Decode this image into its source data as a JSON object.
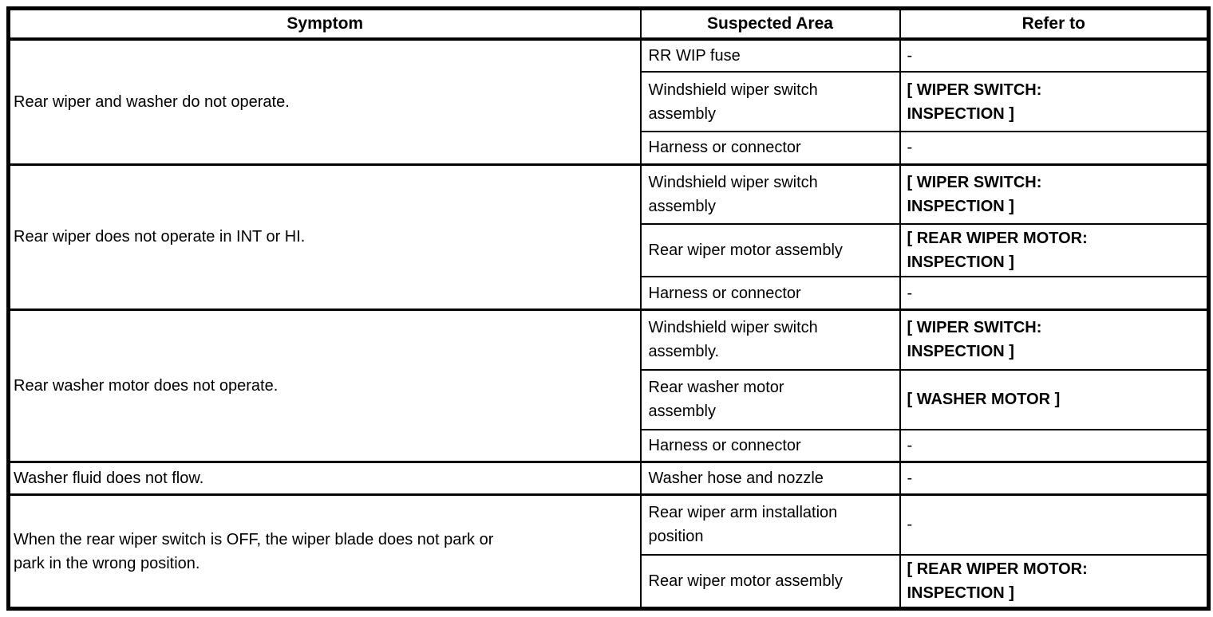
{
  "table": {
    "headers": {
      "symptom": "Symptom",
      "area": "Suspected Area",
      "refer": "Refer to"
    },
    "groups": [
      {
        "symptom": "Rear wiper and washer do not operate.",
        "rows": [
          {
            "area": "RR WIP fuse",
            "refer": "-"
          },
          {
            "area": "Windshield wiper switch\nassembly",
            "refer": "[ WIPER SWITCH:\nINSPECTION ]"
          },
          {
            "area": "Harness or connector",
            "refer": "-"
          }
        ]
      },
      {
        "symptom": "Rear wiper does not operate in INT or HI.",
        "rows": [
          {
            "area": "Windshield wiper switch\nassembly",
            "refer": "[ WIPER SWITCH:\nINSPECTION ]"
          },
          {
            "area": "Rear wiper motor assembly",
            "refer": "[ REAR WIPER MOTOR:\nINSPECTION ]"
          },
          {
            "area": "Harness or connector",
            "refer": "-"
          }
        ]
      },
      {
        "symptom": "Rear washer motor does not operate.",
        "rows": [
          {
            "area": "Windshield wiper switch\nassembly.",
            "refer": "[ WIPER SWITCH:\nINSPECTION ]"
          },
          {
            "area": "Rear washer motor\nassembly",
            "refer": "[ WASHER MOTOR ]"
          },
          {
            "area": "Harness or connector",
            "refer": "-"
          }
        ]
      },
      {
        "symptom": "Washer fluid does not flow.",
        "rows": [
          {
            "area": "Washer hose and nozzle",
            "refer": "-"
          }
        ]
      },
      {
        "symptom": "When the rear wiper switch is OFF, the wiper blade does not park or\npark in the wrong position.",
        "rows": [
          {
            "area": "Rear wiper arm installation\nposition",
            "refer": "-"
          },
          {
            "area": "Rear wiper motor assembly",
            "refer": "[ REAR WIPER MOTOR:\nINSPECTION ]"
          }
        ]
      }
    ]
  }
}
